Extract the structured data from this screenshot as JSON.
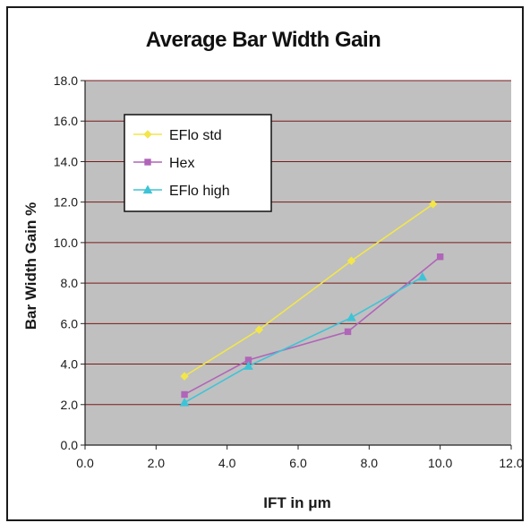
{
  "chart_data": {
    "type": "line",
    "title": "Average Bar Width Gain",
    "xlabel": "IFT in μm",
    "ylabel": "Bar Width Gain %",
    "xlim": [
      0,
      12
    ],
    "ylim": [
      0,
      18
    ],
    "xticks": [
      "0.0",
      "2.0",
      "4.0",
      "6.0",
      "8.0",
      "10.0",
      "12.0"
    ],
    "yticks": [
      "0.0",
      "2.0",
      "4.0",
      "6.0",
      "8.0",
      "10.0",
      "12.0",
      "14.0",
      "16.0",
      "18.0"
    ],
    "grid": true,
    "plot_background": "#c0c0c0",
    "gridline_color": "#7a1a1a",
    "legend_position": "top-left",
    "series": [
      {
        "name": "EFlo std",
        "color": "#f2e64a",
        "marker": "diamond",
        "x": [
          2.8,
          4.9,
          7.5,
          9.8
        ],
        "y": [
          3.4,
          5.7,
          9.1,
          11.9
        ]
      },
      {
        "name": "Hex",
        "color": "#b065b8",
        "marker": "square",
        "x": [
          2.8,
          4.6,
          7.4,
          10.0
        ],
        "y": [
          2.5,
          4.2,
          5.6,
          9.3
        ]
      },
      {
        "name": "EFlo high",
        "color": "#3ec3d6",
        "marker": "triangle",
        "x": [
          2.8,
          4.6,
          7.5,
          9.5
        ],
        "y": [
          2.1,
          3.9,
          6.3,
          8.3
        ]
      }
    ]
  }
}
